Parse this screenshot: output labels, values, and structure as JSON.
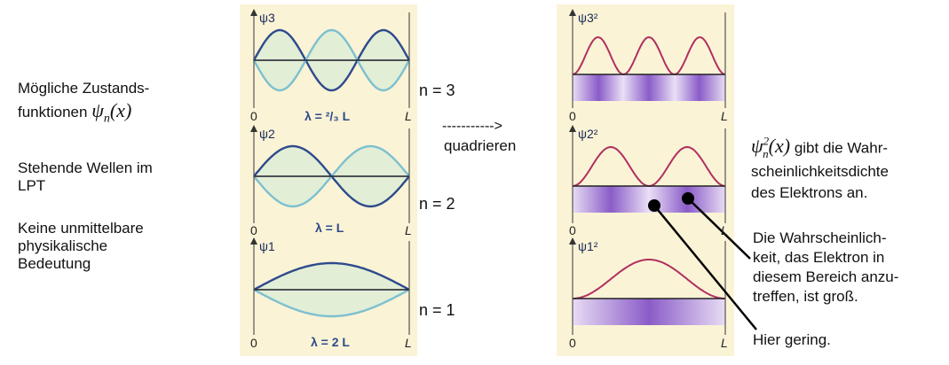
{
  "left_text": {
    "line1": "Mögliche   Zustands-",
    "line2_prefix": "funktionen",
    "psi_symbol": "ψ",
    "psi_sub": "n",
    "psi_arg": "(x)",
    "p2_line1": "Stehende  Wellen  im",
    "p2_line2": "LPT",
    "p3_line1": "Keine unmittelbare",
    "p3_line2": "physikalische",
    "p3_line3": "Bedeutung"
  },
  "wave_panels": [
    {
      "label": "ψ3",
      "lambda": "λ = ²/₃ L",
      "n_label": "n = 3",
      "origin": "0",
      "end": "L"
    },
    {
      "label": "ψ2",
      "lambda": "λ = L",
      "n_label": "n = 2",
      "origin": "0",
      "end": "L"
    },
    {
      "label": "ψ1",
      "lambda": "λ = 2 L",
      "n_label": "n = 1",
      "origin": "0",
      "end": "L"
    }
  ],
  "arrow_text": "----------->",
  "arrow_caption": "quadrieren",
  "density_panels": [
    {
      "label": "ψ3²",
      "origin": "0",
      "end": "L"
    },
    {
      "label": "ψ2²",
      "origin": "0",
      "end": "L"
    },
    {
      "label": "ψ1²",
      "origin": "0",
      "end": "L"
    }
  ],
  "right_text": {
    "psi_symbol": "ψ",
    "psi_sub": "n",
    "psi_sup": "2",
    "psi_arg": "(x)",
    "line1_suffix": "gibt die Wahr-",
    "line2": "scheinlichkeitsdichte",
    "line3": "des Elektrons an.",
    "high_line1": "Die Wahrscheinlich-",
    "high_line2": "keit, das Elektron in",
    "high_line3": "diesem Bereich anzu-",
    "high_line4": "treffen, ist groß.",
    "low_text": "Hier gering."
  },
  "colors": {
    "panel_bg": "#fbf3d6",
    "wave_dark": "#2e4a8c",
    "wave_light": "#7cc0d0",
    "density_curve": "#b03060",
    "band": "#9a6fd0"
  }
}
